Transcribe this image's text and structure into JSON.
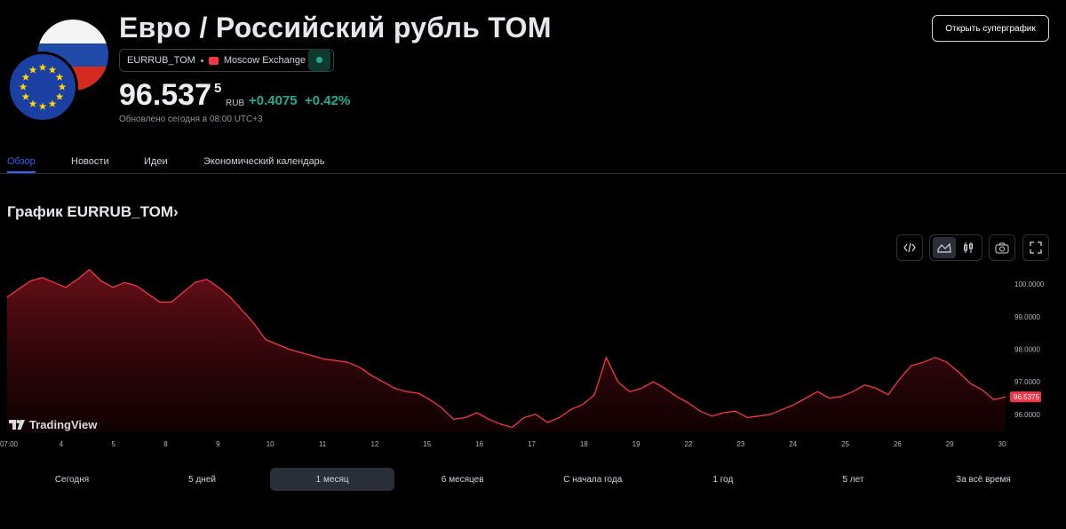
{
  "header": {
    "title": "Евро / Российский рубль TOM",
    "symbol": "EURRUB_TOM",
    "exchange": "Moscow Exchange",
    "price_main": "96.537",
    "price_sup": "5",
    "currency": "RUB",
    "change": "+0.4075",
    "change_pct": "+0.42%",
    "updated": "Обновлено сегодня в 08:00 UTC+3",
    "supergraph_button": "Открыть суперграфик",
    "colors": {
      "positive": "#22ab94",
      "negative": "#f23645",
      "accent": "#2962ff"
    }
  },
  "icons": {
    "flag_ru": "russia-flag-icon",
    "flag_eu": "eu-flag-icon",
    "exchange": "moscow-exchange-icon",
    "status": "market-status-dot-icon",
    "code": "embed-code-icon",
    "area": "area-chart-icon",
    "candles": "candles-chart-icon",
    "camera": "camera-icon",
    "fullscreen": "fullscreen-icon",
    "logo": "tradingview-logo-icon"
  },
  "tabs": [
    "Обзор",
    "Новости",
    "Идеи",
    "Экономический календарь"
  ],
  "chart_section": {
    "title": "График EURRUB_TOM›",
    "brand": "TradingView"
  },
  "ranges": [
    {
      "label": "Сегодня"
    },
    {
      "label": "5 дней"
    },
    {
      "label": "1 месяц",
      "active": true
    },
    {
      "label": "6 месяцев"
    },
    {
      "label": "С начала года"
    },
    {
      "label": "1 год"
    },
    {
      "label": "5 лет"
    },
    {
      "label": "За всё время"
    }
  ],
  "chart_data": {
    "type": "area",
    "color": "#f23645",
    "x_labels": [
      "07:00",
      "4",
      "5",
      "8",
      "9",
      "10",
      "11",
      "12",
      "15",
      "16",
      "17",
      "18",
      "19",
      "22",
      "23",
      "24",
      "25",
      "26",
      "29",
      "30"
    ],
    "y_ticks": [
      "100.0000",
      "99.0000",
      "98.0000",
      "97.0000",
      "96.0000"
    ],
    "ylim": [
      95.45,
      100.55
    ],
    "last_value_label": "96.5375",
    "last_value": 96.5375,
    "values": [
      99.6,
      99.85,
      100.1,
      100.2,
      100.05,
      99.9,
      100.15,
      100.45,
      100.1,
      99.9,
      100.05,
      99.95,
      99.7,
      99.45,
      99.45,
      99.75,
      100.05,
      100.15,
      99.9,
      99.6,
      99.2,
      98.8,
      98.3,
      98.15,
      98.0,
      97.9,
      97.8,
      97.7,
      97.65,
      97.6,
      97.45,
      97.2,
      97.0,
      96.8,
      96.7,
      96.65,
      96.45,
      96.2,
      95.85,
      95.9,
      96.05,
      95.85,
      95.7,
      95.6,
      95.9,
      96.0,
      95.75,
      95.9,
      96.15,
      96.3,
      96.6,
      97.75,
      97.0,
      96.7,
      96.8,
      97.0,
      96.8,
      96.55,
      96.35,
      96.1,
      95.95,
      96.05,
      96.1,
      95.9,
      95.95,
      96.0,
      96.15,
      96.3,
      96.5,
      96.7,
      96.5,
      96.55,
      96.7,
      96.9,
      96.8,
      96.6,
      97.1,
      97.5,
      97.6,
      97.75,
      97.6,
      97.3,
      96.95,
      96.75,
      96.45,
      96.5375
    ]
  }
}
